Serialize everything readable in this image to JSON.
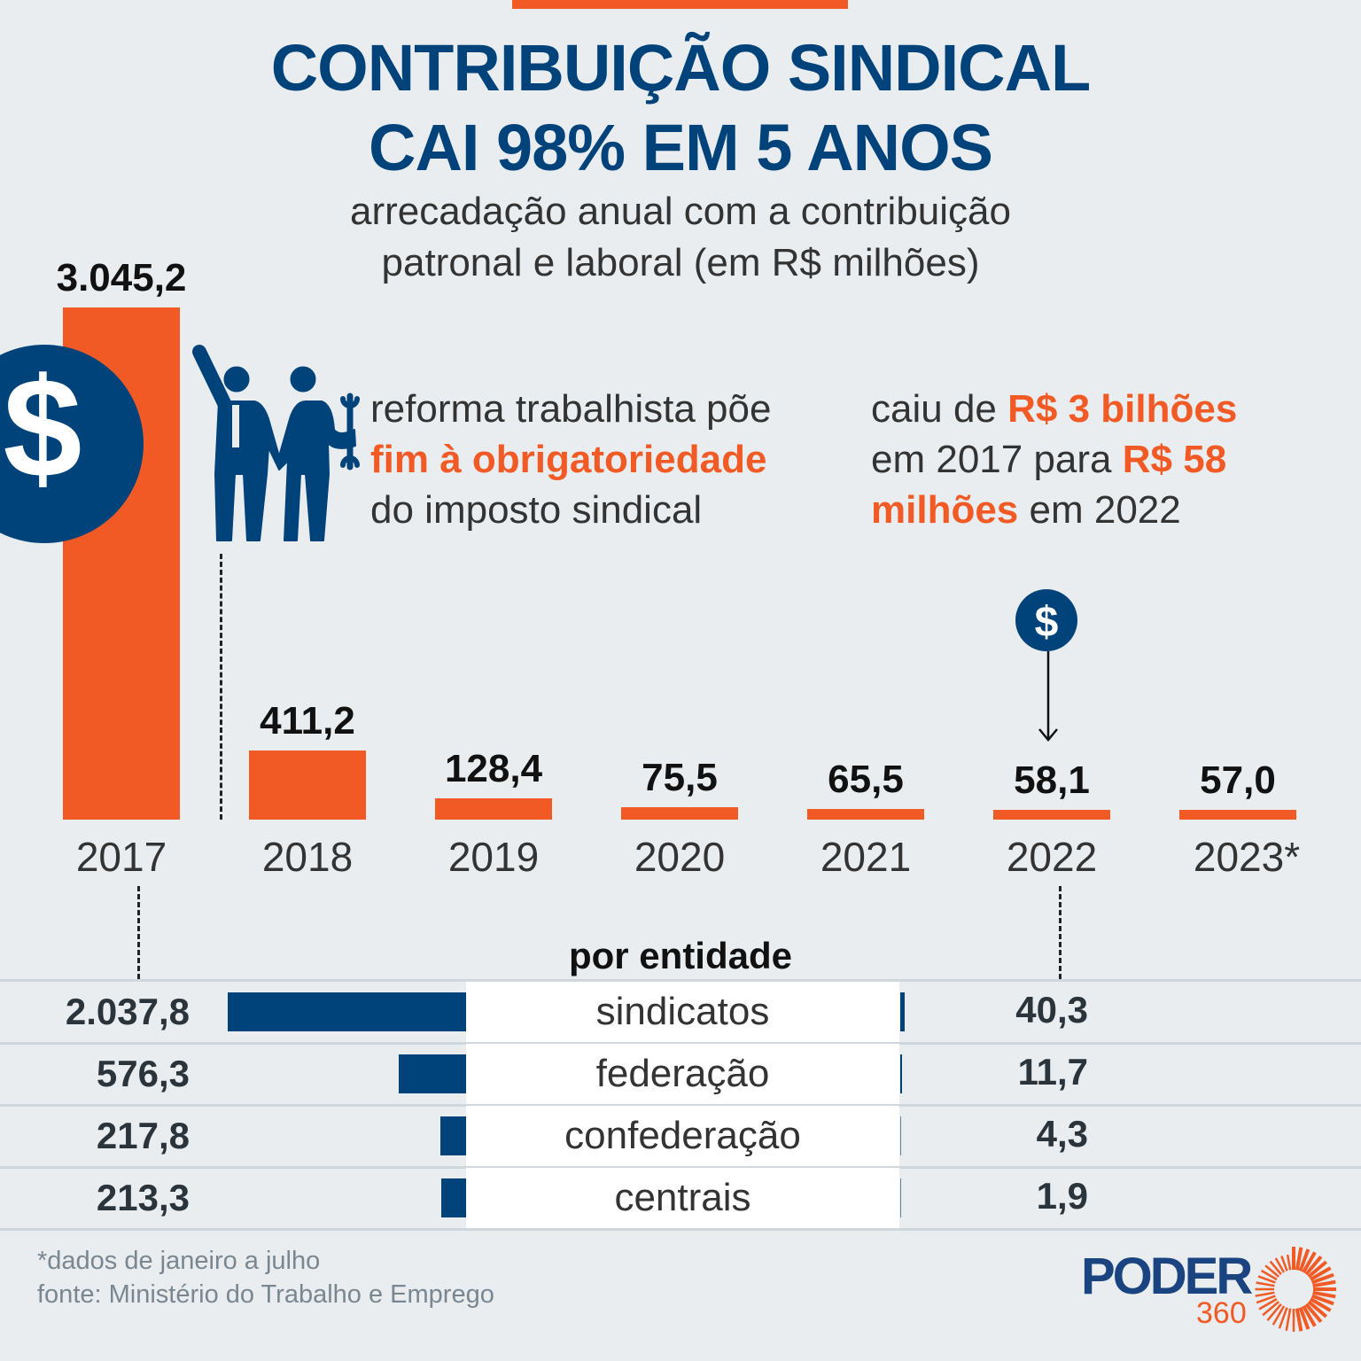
{
  "title": {
    "line1": "CONTRIBUIÇÃO SINDICAL",
    "line2": "CAI 98% EM 5 ANOS"
  },
  "subtitle": {
    "line1": "arrecadação anual com a contribuição",
    "line2": "patronal e laboral (em R$ milhões)"
  },
  "note_left": {
    "part1": "reforma trabalhista põe",
    "highlight": "fim à obrigatoriedade",
    "part2": "do imposto sindical"
  },
  "note_right": {
    "p1": "caiu de ",
    "h1": "R$ 3 bilhões",
    "p2": "em 2017 para ",
    "h2": "R$ 58",
    "h3": "milhões",
    "p3": " em 2022"
  },
  "dollar_icon_symbol": "$",
  "colors": {
    "orange": "#f15a24",
    "blue": "#00437a",
    "background": "#e9edf0"
  },
  "chart_data": [
    {
      "type": "bar",
      "title": "arrecadação anual com a contribuição patronal e laboral (em R$ milhões)",
      "categories": [
        "2017",
        "2018",
        "2019",
        "2020",
        "2021",
        "2022",
        "2023*"
      ],
      "values": [
        3045.2,
        411.2,
        128.4,
        75.5,
        65.5,
        58.1,
        57.0
      ],
      "labels": [
        "3.045,2",
        "411,2",
        "128,4",
        "75,5",
        "65,5",
        "58,1",
        "57,0"
      ],
      "ylim": [
        0,
        3045.2
      ]
    },
    {
      "type": "bar",
      "title": "por entidade",
      "categories": [
        "sindicatos",
        "federação",
        "confederação",
        "centrais"
      ],
      "series": [
        {
          "name": "2017",
          "values": [
            2037.8,
            576.3,
            217.8,
            213.3
          ],
          "labels": [
            "2.037,8",
            "576,3",
            "217,8",
            "213,3"
          ]
        },
        {
          "name": "2022",
          "values": [
            40.3,
            11.7,
            4.3,
            1.9
          ],
          "labels": [
            "40,3",
            "11,7",
            "4,3",
            "1,9"
          ]
        }
      ]
    }
  ],
  "footer": {
    "note": "*dados de janeiro a julho",
    "source": "fonte: Ministério do Trabalho e Emprego"
  },
  "logo": {
    "name": "PODER",
    "number": "360"
  }
}
